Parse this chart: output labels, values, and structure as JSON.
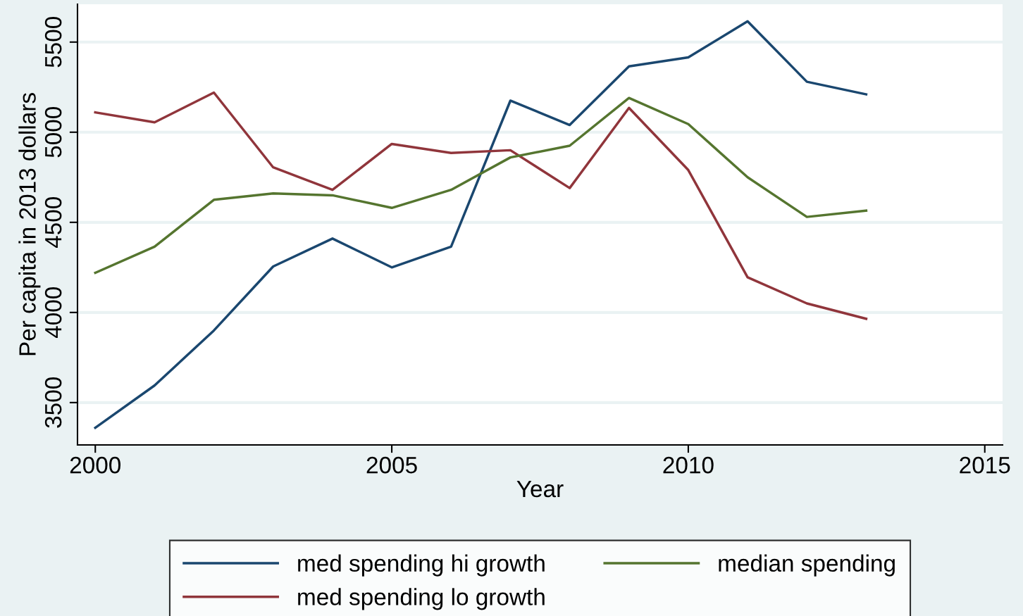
{
  "chart_data": {
    "type": "line",
    "xlabel": "Year",
    "ylabel": "Per capita in 2013 dollars",
    "x": [
      2000,
      2001,
      2002,
      2003,
      2004,
      2005,
      2006,
      2007,
      2008,
      2009,
      2010,
      2011,
      2012,
      2013
    ],
    "series": [
      {
        "name": "med spending hi growth",
        "color": "#1a476f",
        "values": [
          3360,
          3595,
          3900,
          4255,
          4410,
          4250,
          4365,
          5175,
          5040,
          5365,
          5415,
          5615,
          5280,
          5210
        ]
      },
      {
        "name": "med spending lo growth",
        "color": "#90353b",
        "values": [
          5110,
          5055,
          5220,
          4805,
          4680,
          4935,
          4885,
          4900,
          4690,
          5135,
          4790,
          4195,
          4050,
          3965
        ]
      },
      {
        "name": "median spending",
        "color": "#55752f",
        "values": [
          4220,
          4365,
          4625,
          4660,
          4650,
          4580,
          4680,
          4860,
          4925,
          5190,
          5045,
          4750,
          4530,
          4565
        ]
      }
    ],
    "xlim": [
      1999.7,
      2015.3
    ],
    "xticks": [
      2000,
      2005,
      2010,
      2015
    ],
    "ylim": [
      3265,
      5710
    ],
    "yticks": [
      3500,
      4000,
      4500,
      5000,
      5500
    ],
    "grid": "y",
    "legend": "bottom",
    "marker": "none",
    "line_style": "solid"
  }
}
